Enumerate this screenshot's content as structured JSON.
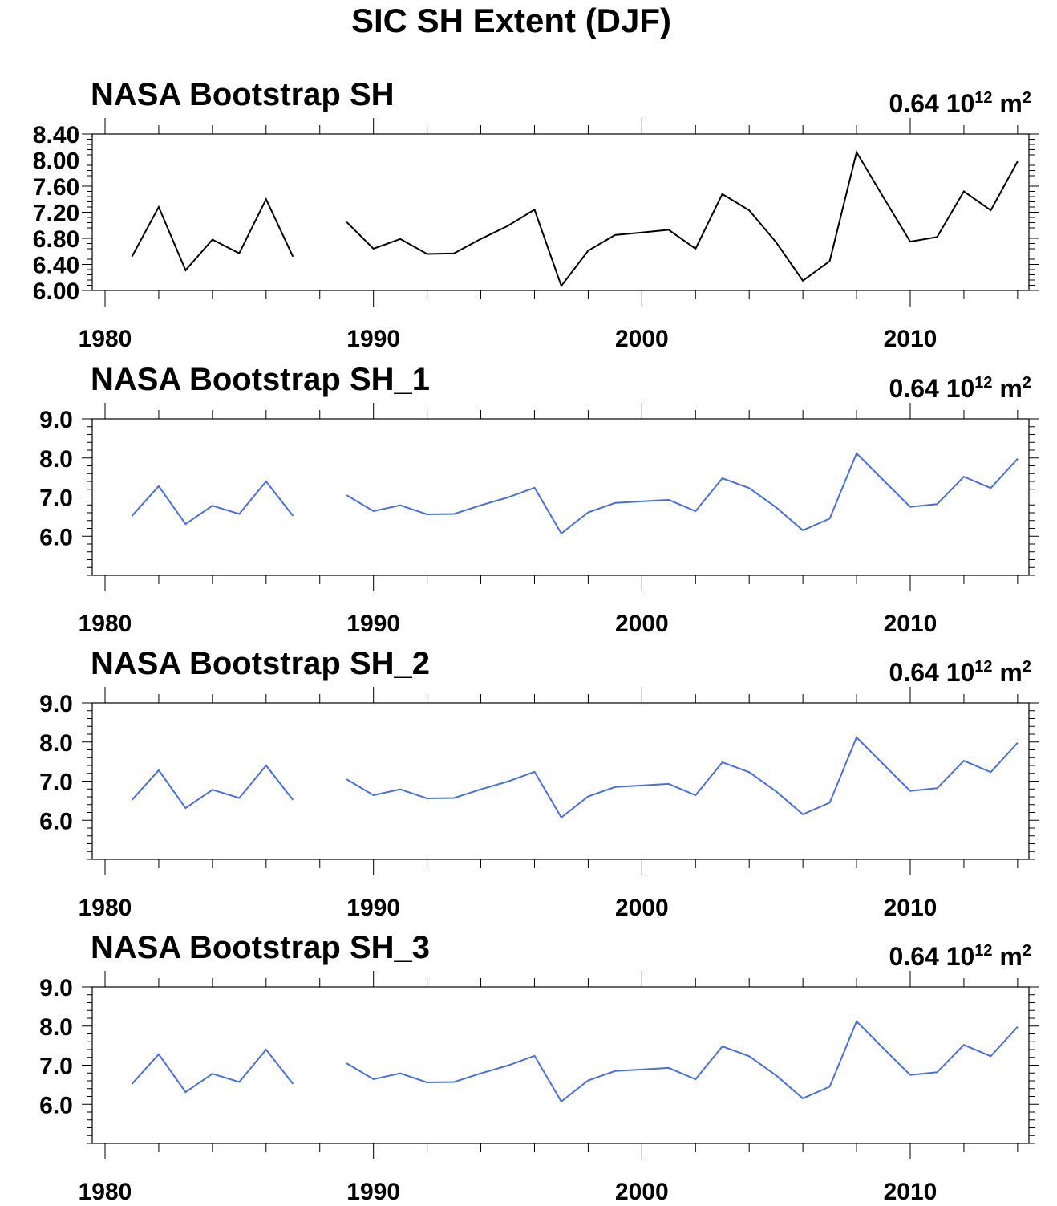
{
  "title": "SIC SH Extent (DJF)",
  "colors": {
    "black": "#000000",
    "blue": "#4a6fd6"
  },
  "chart_data": [
    {
      "type": "line",
      "title": "NASA Bootstrap SH",
      "right_label": {
        "value": "0.64",
        "base": "10",
        "exp": "12",
        "unit": "m",
        "unit_exp": "2"
      },
      "color": "#000000",
      "xlim": [
        1979,
        2015.5
      ],
      "ylim": [
        6.0,
        8.4
      ],
      "yticks": [
        6.0,
        6.4,
        6.8,
        7.2,
        7.6,
        8.0,
        8.4
      ],
      "ytick_labels": [
        "6.00",
        "6.40",
        "6.80",
        "7.20",
        "7.60",
        "8.00",
        "8.40"
      ],
      "yminor": 0.08,
      "xticks": [
        1980,
        1990,
        2000,
        2010
      ],
      "xtick_labels": [
        "1980",
        "1990",
        "2000",
        "2010"
      ],
      "x": [
        1981,
        1982,
        1983,
        1984,
        1985,
        1986,
        1987,
        1988,
        1989,
        1990,
        1991,
        1992,
        1993,
        1994,
        1995,
        1996,
        1997,
        1998,
        1999,
        2000,
        2001,
        2002,
        2003,
        2004,
        2005,
        2006,
        2007,
        2008,
        2009,
        2010,
        2011,
        2012,
        2013,
        2014
      ],
      "y": [
        6.52,
        7.28,
        6.31,
        6.78,
        6.57,
        7.4,
        6.52,
        null,
        7.05,
        6.64,
        6.79,
        6.56,
        6.57,
        6.79,
        6.99,
        7.24,
        6.07,
        6.61,
        6.85,
        6.89,
        6.93,
        6.64,
        7.48,
        7.23,
        6.74,
        6.15,
        6.45,
        8.12,
        7.43,
        6.75,
        6.82,
        7.52,
        7.23,
        7.98
      ]
    },
    {
      "type": "line",
      "title": "NASA Bootstrap SH_1",
      "right_label": {
        "value": "0.64",
        "base": "10",
        "exp": "12",
        "unit": "m",
        "unit_exp": "2"
      },
      "color": "#4a6fd6",
      "xlim": [
        1979,
        2015.5
      ],
      "ylim": [
        5.0,
        9.0
      ],
      "yticks": [
        6.0,
        7.0,
        8.0,
        9.0
      ],
      "ytick_labels": [
        "6.0",
        "7.0",
        "8.0",
        "9.0"
      ],
      "yminor": 0.2,
      "xticks": [
        1980,
        1990,
        2000,
        2010
      ],
      "xtick_labels": [
        "1980",
        "1990",
        "2000",
        "2010"
      ],
      "x": [
        1981,
        1982,
        1983,
        1984,
        1985,
        1986,
        1987,
        1988,
        1989,
        1990,
        1991,
        1992,
        1993,
        1994,
        1995,
        1996,
        1997,
        1998,
        1999,
        2000,
        2001,
        2002,
        2003,
        2004,
        2005,
        2006,
        2007,
        2008,
        2009,
        2010,
        2011,
        2012,
        2013,
        2014
      ],
      "y": [
        6.52,
        7.28,
        6.31,
        6.78,
        6.57,
        7.4,
        6.52,
        null,
        7.05,
        6.64,
        6.79,
        6.56,
        6.57,
        6.79,
        6.99,
        7.24,
        6.07,
        6.61,
        6.85,
        6.89,
        6.93,
        6.64,
        7.48,
        7.23,
        6.74,
        6.15,
        6.45,
        8.12,
        7.43,
        6.75,
        6.82,
        7.52,
        7.23,
        7.98
      ]
    },
    {
      "type": "line",
      "title": "NASA Bootstrap SH_2",
      "right_label": {
        "value": "0.64",
        "base": "10",
        "exp": "12",
        "unit": "m",
        "unit_exp": "2"
      },
      "color": "#4a6fd6",
      "xlim": [
        1979,
        2015.5
      ],
      "ylim": [
        5.0,
        9.0
      ],
      "yticks": [
        6.0,
        7.0,
        8.0,
        9.0
      ],
      "ytick_labels": [
        "6.0",
        "7.0",
        "8.0",
        "9.0"
      ],
      "yminor": 0.2,
      "xticks": [
        1980,
        1990,
        2000,
        2010
      ],
      "xtick_labels": [
        "1980",
        "1990",
        "2000",
        "2010"
      ],
      "x": [
        1981,
        1982,
        1983,
        1984,
        1985,
        1986,
        1987,
        1988,
        1989,
        1990,
        1991,
        1992,
        1993,
        1994,
        1995,
        1996,
        1997,
        1998,
        1999,
        2000,
        2001,
        2002,
        2003,
        2004,
        2005,
        2006,
        2007,
        2008,
        2009,
        2010,
        2011,
        2012,
        2013,
        2014
      ],
      "y": [
        6.52,
        7.28,
        6.31,
        6.78,
        6.57,
        7.4,
        6.52,
        null,
        7.05,
        6.64,
        6.79,
        6.56,
        6.57,
        6.79,
        6.99,
        7.24,
        6.07,
        6.61,
        6.85,
        6.89,
        6.93,
        6.64,
        7.48,
        7.23,
        6.74,
        6.15,
        6.45,
        8.12,
        7.43,
        6.75,
        6.82,
        7.52,
        7.23,
        7.98
      ]
    },
    {
      "type": "line",
      "title": "NASA Bootstrap SH_3",
      "right_label": {
        "value": "0.64",
        "base": "10",
        "exp": "12",
        "unit": "m",
        "unit_exp": "2"
      },
      "color": "#4a6fd6",
      "xlim": [
        1979,
        2015.5
      ],
      "ylim": [
        5.0,
        9.0
      ],
      "yticks": [
        6.0,
        7.0,
        8.0,
        9.0
      ],
      "ytick_labels": [
        "6.0",
        "7.0",
        "8.0",
        "9.0"
      ],
      "yminor": 0.2,
      "xticks": [
        1980,
        1990,
        2000,
        2010
      ],
      "xtick_labels": [
        "1980",
        "1990",
        "2000",
        "2010"
      ],
      "x": [
        1981,
        1982,
        1983,
        1984,
        1985,
        1986,
        1987,
        1988,
        1989,
        1990,
        1991,
        1992,
        1993,
        1994,
        1995,
        1996,
        1997,
        1998,
        1999,
        2000,
        2001,
        2002,
        2003,
        2004,
        2005,
        2006,
        2007,
        2008,
        2009,
        2010,
        2011,
        2012,
        2013,
        2014
      ],
      "y": [
        6.52,
        7.28,
        6.31,
        6.78,
        6.57,
        7.4,
        6.52,
        null,
        7.05,
        6.64,
        6.79,
        6.56,
        6.57,
        6.79,
        6.99,
        7.24,
        6.07,
        6.61,
        6.85,
        6.89,
        6.93,
        6.64,
        7.48,
        7.23,
        6.74,
        6.15,
        6.45,
        8.12,
        7.43,
        6.75,
        6.82,
        7.52,
        7.23,
        7.98
      ]
    }
  ]
}
